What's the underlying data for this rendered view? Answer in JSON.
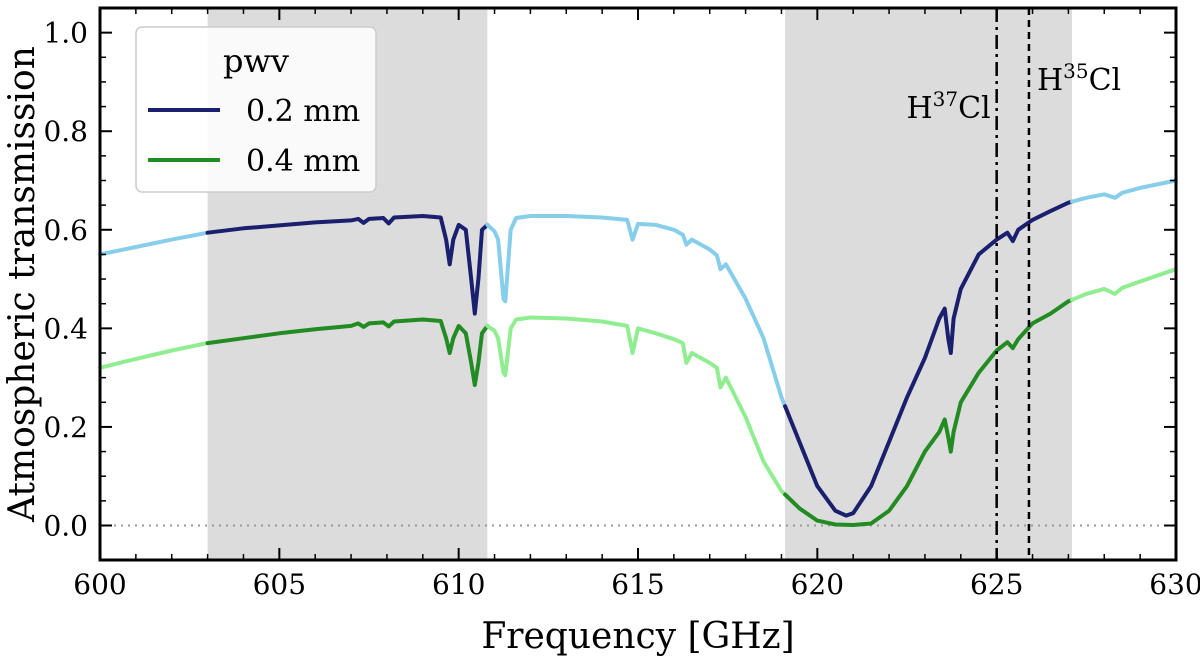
{
  "chart_data": {
    "type": "line",
    "xlabel": "Frequency [GHz]",
    "ylabel": "Atmospheric transmission",
    "xlim": [
      600,
      630
    ],
    "ylim": [
      -0.07,
      1.05
    ],
    "xticks": [
      600,
      605,
      610,
      615,
      620,
      625,
      630
    ],
    "yticks": [
      0.0,
      0.2,
      0.4,
      0.6,
      0.8,
      1.0
    ],
    "xtick_labels": [
      "600",
      "605",
      "610",
      "615",
      "620",
      "625",
      "630"
    ],
    "ytick_labels": [
      "0.0",
      "0.2",
      "0.4",
      "0.6",
      "0.8",
      "1.0"
    ],
    "zero_line": 0.0,
    "shaded_bands": [
      [
        603.0,
        610.8
      ],
      [
        619.1,
        627.1
      ]
    ],
    "legend": {
      "title": "pwv",
      "placement": "top-left"
    },
    "series": [
      {
        "name": "0.2 mm",
        "color": "#1a1f6e",
        "light_color": "#87ceeb",
        "points": [
          [
            600,
            0.55
          ],
          [
            601,
            0.565
          ],
          [
            602,
            0.58
          ],
          [
            603,
            0.594
          ],
          [
            604,
            0.603
          ],
          [
            605,
            0.609
          ],
          [
            606,
            0.615
          ],
          [
            607,
            0.619
          ],
          [
            607.2,
            0.622
          ],
          [
            607.35,
            0.614
          ],
          [
            607.5,
            0.622
          ],
          [
            607.9,
            0.624
          ],
          [
            608.05,
            0.613
          ],
          [
            608.2,
            0.625
          ],
          [
            609,
            0.628
          ],
          [
            609.5,
            0.625
          ],
          [
            609.65,
            0.58
          ],
          [
            609.75,
            0.53
          ],
          [
            609.85,
            0.58
          ],
          [
            610.0,
            0.61
          ],
          [
            610.2,
            0.6
          ],
          [
            610.35,
            0.5
          ],
          [
            610.45,
            0.43
          ],
          [
            610.55,
            0.5
          ],
          [
            610.65,
            0.6
          ],
          [
            610.8,
            0.61
          ],
          [
            611.0,
            0.597
          ],
          [
            611.1,
            0.58
          ],
          [
            611.25,
            0.46
          ],
          [
            611.3,
            0.455
          ],
          [
            611.45,
            0.6
          ],
          [
            611.6,
            0.624
          ],
          [
            612,
            0.628
          ],
          [
            613,
            0.628
          ],
          [
            614,
            0.625
          ],
          [
            614.7,
            0.62
          ],
          [
            614.85,
            0.58
          ],
          [
            615.0,
            0.612
          ],
          [
            615.5,
            0.61
          ],
          [
            616,
            0.6
          ],
          [
            616.25,
            0.59
          ],
          [
            616.35,
            0.57
          ],
          [
            616.5,
            0.58
          ],
          [
            617,
            0.56
          ],
          [
            617.2,
            0.548
          ],
          [
            617.3,
            0.52
          ],
          [
            617.45,
            0.53
          ],
          [
            618,
            0.46
          ],
          [
            618.5,
            0.38
          ],
          [
            619,
            0.26
          ],
          [
            619.5,
            0.17
          ],
          [
            620,
            0.08
          ],
          [
            620.5,
            0.03
          ],
          [
            620.8,
            0.02
          ],
          [
            621,
            0.025
          ],
          [
            621.5,
            0.08
          ],
          [
            622,
            0.17
          ],
          [
            622.5,
            0.26
          ],
          [
            623,
            0.34
          ],
          [
            623.4,
            0.42
          ],
          [
            623.55,
            0.44
          ],
          [
            623.65,
            0.38
          ],
          [
            623.72,
            0.35
          ],
          [
            623.8,
            0.42
          ],
          [
            624,
            0.48
          ],
          [
            624.5,
            0.55
          ],
          [
            625,
            0.58
          ],
          [
            625.3,
            0.594
          ],
          [
            625.45,
            0.577
          ],
          [
            625.6,
            0.6
          ],
          [
            626,
            0.62
          ],
          [
            626.5,
            0.638
          ],
          [
            627,
            0.655
          ],
          [
            627.5,
            0.665
          ],
          [
            628,
            0.672
          ],
          [
            628.3,
            0.665
          ],
          [
            628.5,
            0.675
          ],
          [
            629,
            0.685
          ],
          [
            630,
            0.7
          ]
        ]
      },
      {
        "name": "0.4 mm",
        "color": "#228b22",
        "light_color": "#90ee90",
        "points": [
          [
            600,
            0.32
          ],
          [
            601,
            0.338
          ],
          [
            602,
            0.355
          ],
          [
            603,
            0.37
          ],
          [
            604,
            0.38
          ],
          [
            605,
            0.39
          ],
          [
            606,
            0.398
          ],
          [
            607,
            0.405
          ],
          [
            607.2,
            0.41
          ],
          [
            607.35,
            0.403
          ],
          [
            607.5,
            0.41
          ],
          [
            607.9,
            0.412
          ],
          [
            608.05,
            0.404
          ],
          [
            608.2,
            0.414
          ],
          [
            609,
            0.418
          ],
          [
            609.5,
            0.415
          ],
          [
            609.65,
            0.38
          ],
          [
            609.75,
            0.35
          ],
          [
            609.85,
            0.38
          ],
          [
            610.0,
            0.405
          ],
          [
            610.2,
            0.39
          ],
          [
            610.35,
            0.33
          ],
          [
            610.45,
            0.285
          ],
          [
            610.55,
            0.33
          ],
          [
            610.65,
            0.39
          ],
          [
            610.8,
            0.405
          ],
          [
            611.0,
            0.395
          ],
          [
            611.1,
            0.38
          ],
          [
            611.25,
            0.31
          ],
          [
            611.3,
            0.305
          ],
          [
            611.45,
            0.4
          ],
          [
            611.6,
            0.418
          ],
          [
            612,
            0.422
          ],
          [
            613,
            0.42
          ],
          [
            614,
            0.414
          ],
          [
            614.7,
            0.405
          ],
          [
            614.85,
            0.35
          ],
          [
            615.0,
            0.4
          ],
          [
            615.5,
            0.39
          ],
          [
            616,
            0.378
          ],
          [
            616.25,
            0.37
          ],
          [
            616.35,
            0.33
          ],
          [
            616.5,
            0.35
          ],
          [
            617,
            0.33
          ],
          [
            617.2,
            0.32
          ],
          [
            617.3,
            0.28
          ],
          [
            617.45,
            0.3
          ],
          [
            618,
            0.22
          ],
          [
            618.5,
            0.13
          ],
          [
            619,
            0.07
          ],
          [
            619.5,
            0.035
          ],
          [
            620,
            0.01
          ],
          [
            620.5,
            0.002
          ],
          [
            621,
            0.001
          ],
          [
            621.5,
            0.004
          ],
          [
            622,
            0.03
          ],
          [
            622.5,
            0.08
          ],
          [
            623,
            0.15
          ],
          [
            623.4,
            0.19
          ],
          [
            623.55,
            0.215
          ],
          [
            623.65,
            0.18
          ],
          [
            623.72,
            0.15
          ],
          [
            623.8,
            0.19
          ],
          [
            624,
            0.25
          ],
          [
            624.5,
            0.31
          ],
          [
            625,
            0.355
          ],
          [
            625.3,
            0.372
          ],
          [
            625.45,
            0.36
          ],
          [
            625.6,
            0.378
          ],
          [
            626,
            0.41
          ],
          [
            626.5,
            0.43
          ],
          [
            627,
            0.455
          ],
          [
            627.5,
            0.47
          ],
          [
            628,
            0.48
          ],
          [
            628.3,
            0.47
          ],
          [
            628.5,
            0.482
          ],
          [
            629,
            0.495
          ],
          [
            630,
            0.52
          ]
        ]
      }
    ],
    "vertical_lines": [
      {
        "x": 625.0,
        "style": "dashdot",
        "label_base": "H",
        "label_sup": "37",
        "label_tail": "Cl"
      },
      {
        "x": 625.9,
        "style": "dashed",
        "label_base": "H",
        "label_sup": "35",
        "label_tail": "Cl"
      }
    ]
  }
}
